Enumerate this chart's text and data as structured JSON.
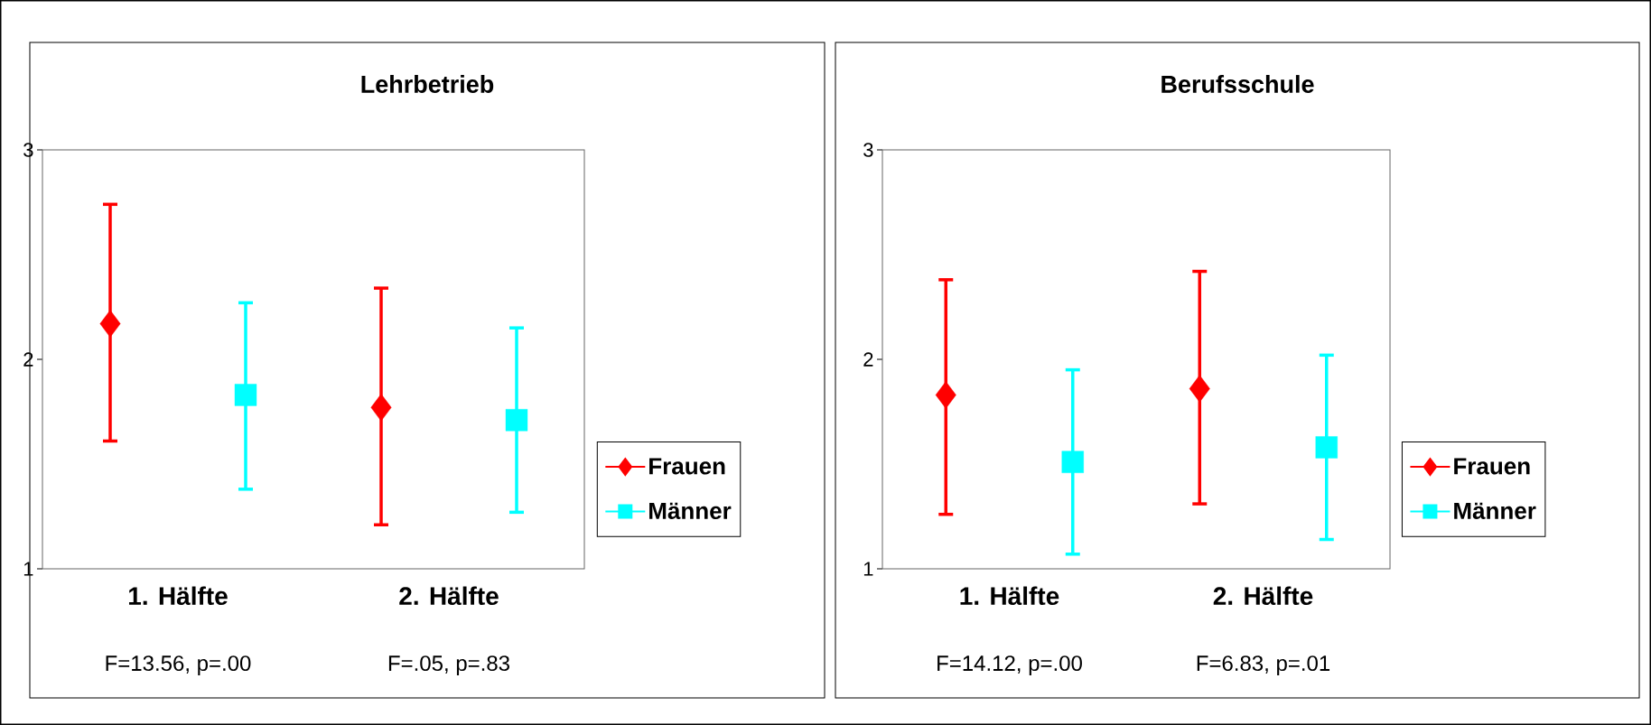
{
  "chart_data": [
    {
      "type": "scatter",
      "title": "Lehrbetrieb",
      "categories": [
        "1. Hälfte",
        "2. Hälfte"
      ],
      "series": [
        {
          "name": "Frauen",
          "color": "#ff0000",
          "marker": "diamond",
          "values": [
            2.17,
            1.77
          ],
          "errors": [
            [
              1.61,
              2.74
            ],
            [
              1.21,
              2.34
            ]
          ]
        },
        {
          "name": "Männer",
          "color": "#00ffff",
          "marker": "square",
          "values": [
            1.83,
            1.71
          ],
          "errors": [
            [
              1.38,
              2.27
            ],
            [
              1.27,
              2.15
            ]
          ]
        }
      ],
      "ylim": [
        1,
        3
      ],
      "yticks": [
        1,
        2,
        3
      ],
      "legend": "right",
      "annotations": [
        "F=13.56, p=.00",
        "F=.05, p=.83"
      ]
    },
    {
      "type": "scatter",
      "title": "Berufsschule",
      "categories": [
        "1. Hälfte",
        "2. Hälfte"
      ],
      "series": [
        {
          "name": "Frauen",
          "color": "#ff0000",
          "marker": "diamond",
          "values": [
            1.83,
            1.86
          ],
          "errors": [
            [
              1.26,
              2.38
            ],
            [
              1.31,
              2.42
            ]
          ]
        },
        {
          "name": "Männer",
          "color": "#00ffff",
          "marker": "square",
          "values": [
            1.51,
            1.58
          ],
          "errors": [
            [
              1.07,
              1.95
            ],
            [
              1.14,
              2.02
            ]
          ]
        }
      ],
      "ylim": [
        1,
        3
      ],
      "yticks": [
        1,
        2,
        3
      ],
      "legend": "right",
      "annotations": [
        "F=14.12, p=.00",
        "F=6.83, p=.01"
      ]
    }
  ]
}
